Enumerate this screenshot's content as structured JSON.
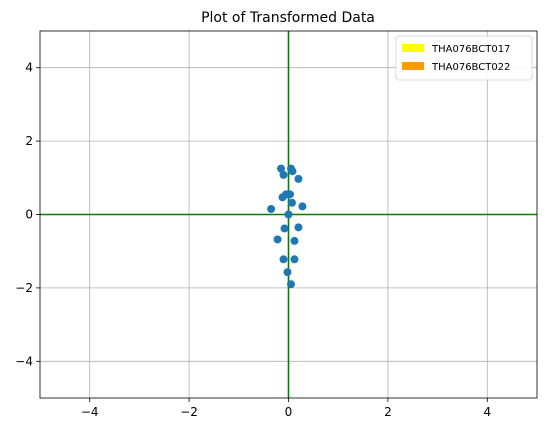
{
  "chart_data": {
    "type": "scatter",
    "title": "Plot of Transformed Data",
    "xlabel": "",
    "ylabel": "",
    "xlim": [
      -5,
      5
    ],
    "ylim": [
      -5,
      5
    ],
    "xticks": [
      -4,
      -2,
      0,
      2,
      4
    ],
    "yticks": [
      -4,
      -2,
      0,
      2,
      4
    ],
    "grid": true,
    "legend_placement": "top-right",
    "legend": [
      {
        "label": "THA076BCT017",
        "color": "#ffff00"
      },
      {
        "label": "THA076BCT022",
        "color": "#ff9900"
      }
    ],
    "reference_lines": {
      "x": 0,
      "y": 0,
      "color": "#008000"
    },
    "point_color": "#1f77b4",
    "points": [
      {
        "x": -0.15,
        "y": 1.25
      },
      {
        "x": 0.05,
        "y": 1.25
      },
      {
        "x": -0.1,
        "y": 1.08
      },
      {
        "x": 0.08,
        "y": 1.18
      },
      {
        "x": 0.2,
        "y": 0.97
      },
      {
        "x": -0.05,
        "y": 0.55
      },
      {
        "x": 0.03,
        "y": 0.55
      },
      {
        "x": -0.12,
        "y": 0.47
      },
      {
        "x": 0.07,
        "y": 0.32
      },
      {
        "x": 0.28,
        "y": 0.22
      },
      {
        "x": -0.35,
        "y": 0.15
      },
      {
        "x": 0.0,
        "y": 0.0
      },
      {
        "x": -0.08,
        "y": -0.38
      },
      {
        "x": 0.2,
        "y": -0.35
      },
      {
        "x": -0.22,
        "y": -0.68
      },
      {
        "x": 0.12,
        "y": -0.72
      },
      {
        "x": -0.1,
        "y": -1.22
      },
      {
        "x": 0.12,
        "y": -1.22
      },
      {
        "x": -0.02,
        "y": -1.57
      },
      {
        "x": 0.05,
        "y": -1.9
      }
    ]
  }
}
